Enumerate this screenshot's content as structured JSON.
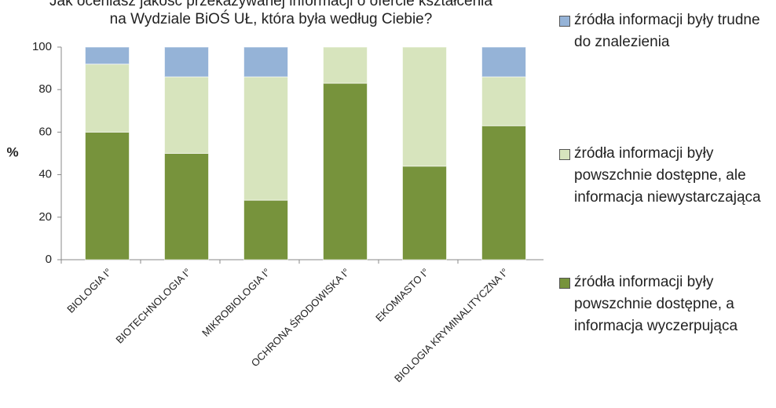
{
  "chart_data": {
    "type": "stacked_bar",
    "title": [
      "Jak oceniasz jakość przekazywanej informacji o ofercie kształcenia",
      "na Wydziale BiOŚ UŁ, która była według Ciebie?"
    ],
    "y_label": "%",
    "categories": [
      "BIOLOGIA I°",
      "BIOTECHNOLOGIA I°",
      "MIKROBIOLOGIA I°",
      "OCHRONA ŚRODOWISKA I°",
      "EKOMIASTO I°",
      "BIOLOGIA KRYMINALITYCZNA I°"
    ],
    "series": [
      {
        "name": "źródła informacji były powszchnie dostępne, a informacja wyczerpująca",
        "color": "#77933c",
        "values": [
          60,
          50,
          28,
          83,
          44,
          63
        ]
      },
      {
        "name": "źródła informacji były powszchnie dostępne, ale informacja niewystarczająca",
        "color": "#d7e4bd",
        "values": [
          32,
          36,
          58,
          17,
          56,
          23
        ]
      },
      {
        "name": "źródła informacji były trudne do znalezienia",
        "color": "#95b3d7",
        "values": [
          8,
          14,
          14,
          0,
          0,
          14
        ]
      }
    ],
    "ylim": [
      0,
      100
    ],
    "yticks": [
      0,
      20,
      40,
      60,
      80,
      100
    ],
    "legend": "right"
  }
}
